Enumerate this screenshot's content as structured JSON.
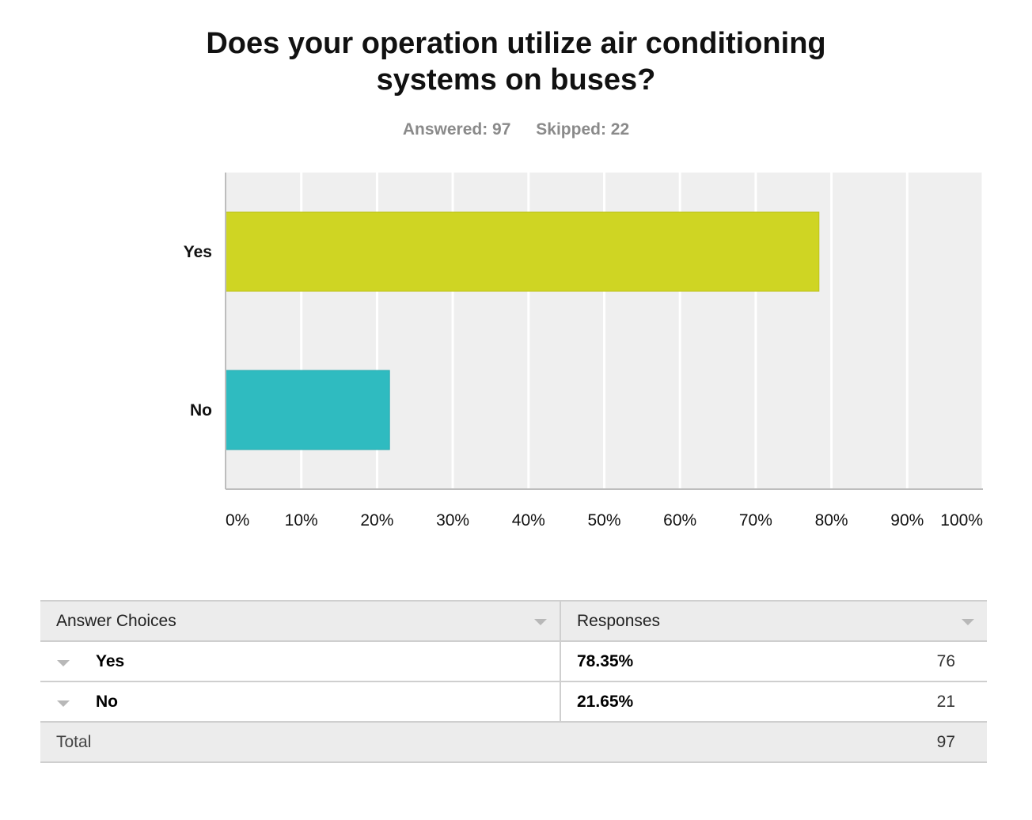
{
  "title_lines": [
    "Does your operation utilize air conditioning",
    "systems on buses?"
  ],
  "stats": {
    "answered": "Answered: 97",
    "skipped": "Skipped: 22"
  },
  "colors": {
    "yes_bar": "#cfd523",
    "no_bar": "#2fbbc0",
    "plot_bg": "#efefef",
    "grid": "#ffffff"
  },
  "chart_data": {
    "type": "bar",
    "orientation": "horizontal",
    "title": "Does your operation utilize air conditioning systems on buses?",
    "categories": [
      "Yes",
      "No"
    ],
    "values": [
      78.35,
      21.65
    ],
    "xlim": [
      0,
      100
    ],
    "xticks": [
      "0%",
      "10%",
      "20%",
      "30%",
      "40%",
      "50%",
      "60%",
      "70%",
      "80%",
      "90%",
      "100%"
    ],
    "grid": true,
    "legend": "none"
  },
  "table": {
    "headers": {
      "choices": "Answer Choices",
      "responses": "Responses"
    },
    "rows": [
      {
        "choice": "Yes",
        "percent": "78.35%",
        "count": "76"
      },
      {
        "choice": "No",
        "percent": "21.65%",
        "count": "21"
      }
    ],
    "total_label": "Total",
    "total_count": "97"
  }
}
